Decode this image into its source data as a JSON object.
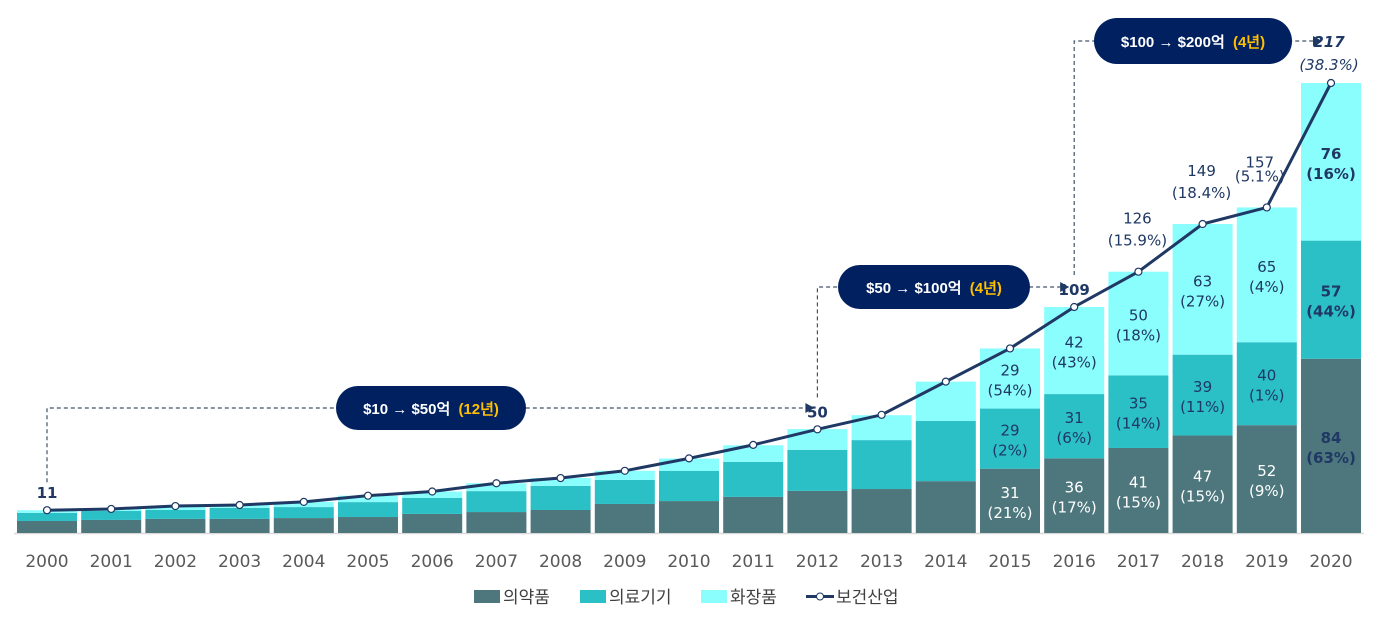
{
  "chart_data": {
    "type": "bar",
    "stacked": true,
    "overlay_line": true,
    "categories": [
      "2000",
      "2001",
      "2002",
      "2003",
      "2004",
      "2005",
      "2006",
      "2007",
      "2008",
      "2009",
      "2010",
      "2011",
      "2012",
      "2013",
      "2014",
      "2015",
      "2016",
      "2017",
      "2018",
      "2019",
      "2020"
    ],
    "series": [
      {
        "name": "의약품",
        "color": "#4d777c",
        "values": [
          5.8,
          6.3,
          6.8,
          6.8,
          7.2,
          7.7,
          9.2,
          10.1,
          11.1,
          14,
          15.4,
          17.4,
          20.3,
          21.2,
          25,
          31,
          36,
          41,
          47,
          52,
          84
        ]
      },
      {
        "name": "의료기기",
        "color": "#2bbfc6",
        "values": [
          3.9,
          4.3,
          4.3,
          5.3,
          5.3,
          7.2,
          7.7,
          10.1,
          11.6,
          11.6,
          14.5,
          16.9,
          19.8,
          23.6,
          29,
          29,
          31,
          35,
          39,
          40,
          57
        ]
      },
      {
        "name": "화장품",
        "color": "#8afdfd",
        "values": [
          1.3,
          1,
          1.9,
          1.4,
          2.5,
          3.1,
          3.1,
          3.8,
          3.8,
          4.4,
          6,
          8,
          10,
          12,
          19,
          29,
          42,
          50,
          63,
          65,
          76
        ]
      }
    ],
    "line": {
      "name": "보건산업",
      "color": "#1f3864",
      "values": [
        11,
        11.6,
        13,
        13.5,
        15,
        18,
        20,
        24,
        26.5,
        30,
        36,
        42.5,
        50,
        57,
        73,
        89,
        109,
        126,
        149,
        157,
        217
      ]
    },
    "segment_labels": [
      {
        "year": "2015",
        "pharma": [
          "31",
          "(21%)"
        ],
        "device": [
          "29",
          "(2%)"
        ],
        "cosmetics": [
          "29",
          "(54%)"
        ]
      },
      {
        "year": "2016",
        "pharma": [
          "36",
          "(17%)"
        ],
        "device": [
          "31",
          "(6%)"
        ],
        "cosmetics": [
          "42",
          "(43%)"
        ]
      },
      {
        "year": "2017",
        "pharma": [
          "41",
          "(15%)"
        ],
        "device": [
          "35",
          "(14%)"
        ],
        "cosmetics": [
          "50",
          "(18%)"
        ]
      },
      {
        "year": "2018",
        "pharma": [
          "47",
          "(15%)"
        ],
        "device": [
          "39",
          "(11%)"
        ],
        "cosmetics": [
          "63",
          "(27%)"
        ]
      },
      {
        "year": "2019",
        "pharma": [
          "52",
          "(9%)"
        ],
        "device": [
          "40",
          "(1%)"
        ],
        "cosmetics": [
          "65",
          "(4%)"
        ]
      },
      {
        "year": "2020",
        "pharma": [
          "84",
          "(63%)"
        ],
        "device": [
          "57",
          "(44%)"
        ],
        "cosmetics": [
          "76",
          "(16%)"
        ]
      }
    ],
    "total_labels": [
      {
        "year": "2000",
        "value": "11"
      },
      {
        "year": "2012",
        "value": "50"
      },
      {
        "year": "2016",
        "value": "109"
      },
      {
        "year": "2017",
        "value": "126",
        "growth": "(15.9%)"
      },
      {
        "year": "2018",
        "value": "149",
        "growth": "(18.4%)"
      },
      {
        "year": "2019",
        "value": "157",
        "growth": "(5.1%)"
      },
      {
        "year": "2020",
        "value": "217",
        "growth": "(38.3%)",
        "highlight_color": "#ff0000"
      }
    ],
    "annotations": [
      {
        "from": "2000",
        "to": "2012",
        "text": "$10 → $50억",
        "years": "(12년)"
      },
      {
        "from": "2012",
        "to": "2016",
        "text": "$50 → $100억",
        "years": "(4년)"
      },
      {
        "from": "2016",
        "to": "2020",
        "text": "$100 → $200억",
        "years": "(4년)"
      }
    ],
    "annotation_style": {
      "pill_color": "#002060",
      "years_color": "#ffc000"
    },
    "ylim": [
      0,
      217
    ],
    "grid": false,
    "legend_position": "bottom"
  }
}
